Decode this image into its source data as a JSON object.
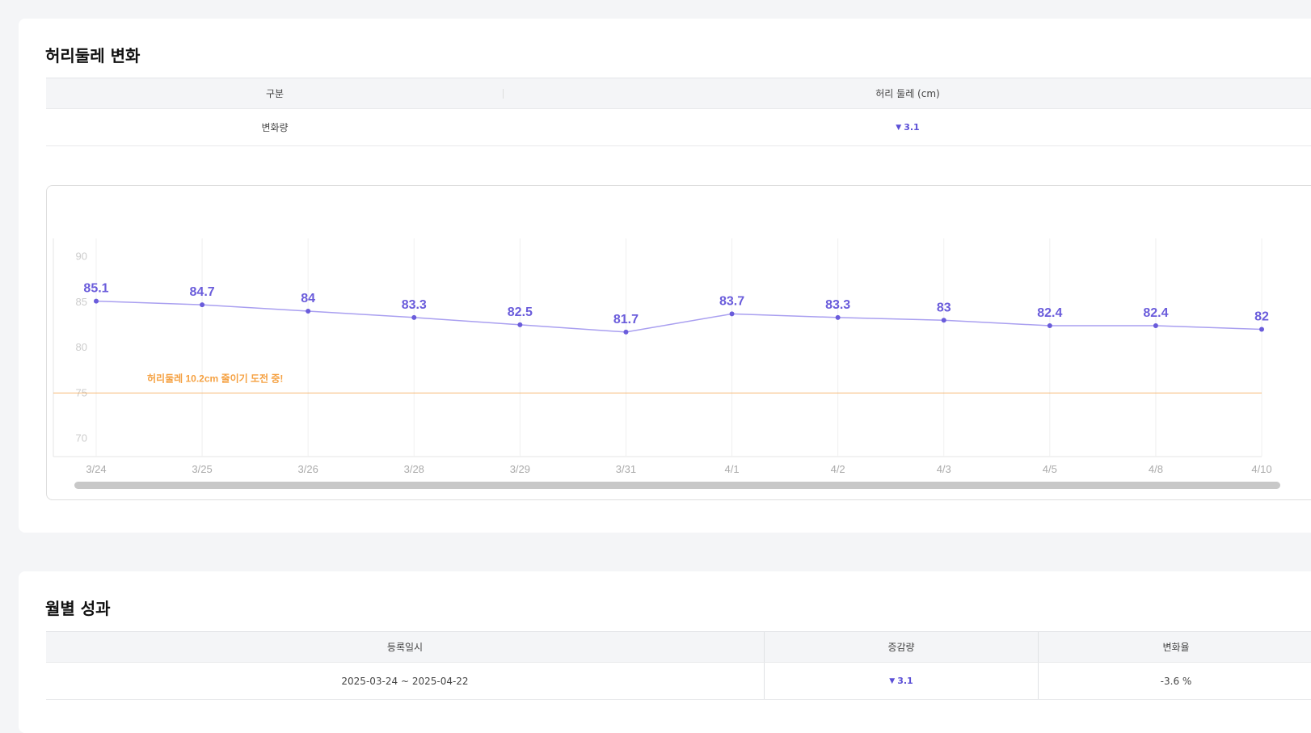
{
  "waist_section": {
    "title": "허리둘레 변화",
    "table": {
      "headers": [
        "구분",
        "허리 둘레 (cm)"
      ],
      "row": {
        "label": "변화량",
        "value": "3.1",
        "direction": "down"
      }
    }
  },
  "chart_data": {
    "type": "line",
    "categories": [
      "3/24",
      "3/25",
      "3/26",
      "3/28",
      "3/29",
      "3/31",
      "4/1",
      "4/2",
      "4/3",
      "4/5",
      "4/8",
      "4/10"
    ],
    "series": [
      {
        "name": "허리 둘레",
        "values": [
          85.1,
          84.7,
          84,
          83.3,
          82.5,
          81.7,
          83.7,
          83.3,
          83,
          82.4,
          82.4,
          82
        ],
        "color": "#6a5cdb"
      }
    ],
    "y_ticks": [
      70,
      75,
      80,
      85,
      90
    ],
    "ylim": [
      68,
      92
    ],
    "target": {
      "value": 75,
      "label": "허리둘레 10.2cm 줄이기 도전 중!",
      "color": "#f5a142"
    },
    "grid": true
  },
  "monthly_section": {
    "title": "월별 성과",
    "table": {
      "headers": [
        "등록일시",
        "증감량",
        "변화율"
      ],
      "row": {
        "period": "2025-03-24 ~ 2025-04-22",
        "change": "3.1",
        "rate": "-3.6 %"
      }
    }
  }
}
